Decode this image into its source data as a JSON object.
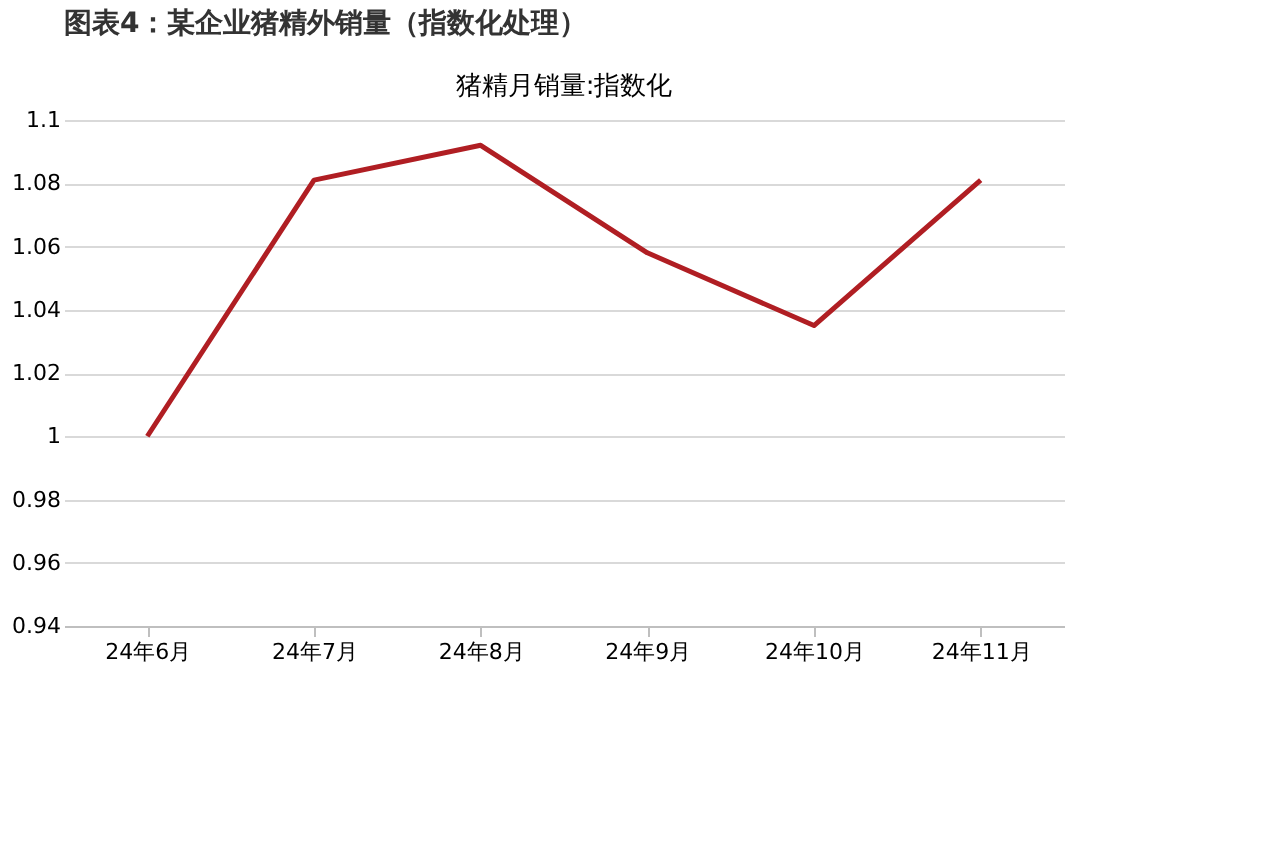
{
  "chart_data": {
    "type": "line",
    "title": "图表4：某企业猪精外销量（指数化处理）",
    "subtitle": "猪精月销量:指数化",
    "categories": [
      "24年6月",
      "24年7月",
      "24年8月",
      "24年9月",
      "24年10月",
      "24年11月"
    ],
    "series": [
      {
        "color": "#b01e23",
        "values": [
          1.0,
          1.081,
          1.092,
          1.058,
          1.035,
          1.081
        ]
      }
    ],
    "ylim": [
      0.94,
      1.1
    ],
    "yticks": [
      0.94,
      0.96,
      0.98,
      1,
      1.02,
      1.04,
      1.06,
      1.08,
      1.1
    ],
    "grid": "y",
    "marker": "none",
    "line_style": "solid"
  }
}
